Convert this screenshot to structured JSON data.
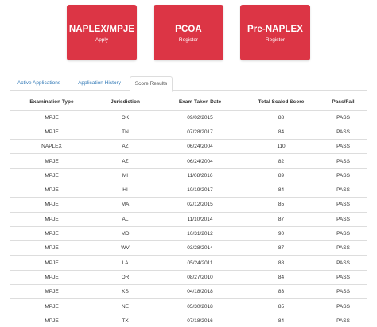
{
  "tiles": [
    {
      "title": "NAPLEX/MPJE",
      "action": "Apply"
    },
    {
      "title": "PCOA",
      "action": "Register"
    },
    {
      "title": "Pre-NAPLEX",
      "action": "Register"
    }
  ],
  "tabs": [
    {
      "label": "Active Applications",
      "active": false
    },
    {
      "label": "Application History",
      "active": false
    },
    {
      "label": "Score Results",
      "active": true
    }
  ],
  "table": {
    "headers": [
      "Examination Type",
      "Jurisdiction",
      "Exam Taken Date",
      "Total Scaled Score",
      "Pass/Fail"
    ],
    "rows": [
      [
        "MPJE",
        "OK",
        "09/02/2015",
        "88",
        "PASS"
      ],
      [
        "MPJE",
        "TN",
        "07/28/2017",
        "84",
        "PASS"
      ],
      [
        "NAPLEX",
        "AZ",
        "06/24/2004",
        "110",
        "PASS"
      ],
      [
        "MPJE",
        "AZ",
        "06/24/2004",
        "82",
        "PASS"
      ],
      [
        "MPJE",
        "MI",
        "11/08/2016",
        "89",
        "PASS"
      ],
      [
        "MPJE",
        "HI",
        "10/19/2017",
        "84",
        "PASS"
      ],
      [
        "MPJE",
        "MA",
        "02/12/2015",
        "85",
        "PASS"
      ],
      [
        "MPJE",
        "AL",
        "11/10/2014",
        "87",
        "PASS"
      ],
      [
        "MPJE",
        "MD",
        "10/31/2012",
        "90",
        "PASS"
      ],
      [
        "MPJE",
        "WV",
        "03/28/2014",
        "87",
        "PASS"
      ],
      [
        "MPJE",
        "LA",
        "05/24/2011",
        "88",
        "PASS"
      ],
      [
        "MPJE",
        "OR",
        "08/27/2010",
        "84",
        "PASS"
      ],
      [
        "MPJE",
        "KS",
        "04/18/2018",
        "83",
        "PASS"
      ],
      [
        "MPJE",
        "NE",
        "05/30/2018",
        "85",
        "PASS"
      ],
      [
        "MPJE",
        "TX",
        "07/18/2016",
        "84",
        "PASS"
      ]
    ]
  },
  "colors": {
    "tile_red": "#dc3545",
    "link_blue": "#337ab7"
  }
}
